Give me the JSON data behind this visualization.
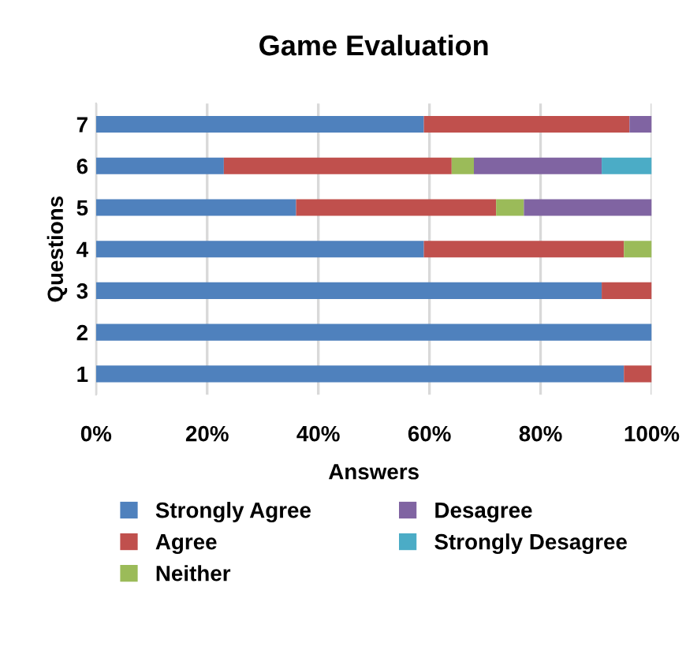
{
  "chart_data": {
    "type": "bar",
    "orientation": "horizontal",
    "stacked": true,
    "title": "Game Evaluation",
    "xlabel": "Answers",
    "ylabel": "Questions",
    "categories": [
      "7",
      "6",
      "5",
      "4",
      "3",
      "2",
      "1"
    ],
    "series": [
      {
        "name": "Strongly Agree",
        "color": "#4f81bd",
        "values": [
          59,
          23,
          36,
          59,
          91,
          100,
          95
        ]
      },
      {
        "name": "Agree",
        "color": "#c0504d",
        "values": [
          37,
          41,
          36,
          36,
          9,
          0,
          5
        ]
      },
      {
        "name": "Neither",
        "color": "#9bbb59",
        "values": [
          0,
          4,
          5,
          5,
          0,
          0,
          0
        ]
      },
      {
        "name": "Desagree",
        "color": "#8064a2",
        "values": [
          4,
          23,
          23,
          0,
          0,
          0,
          0
        ]
      },
      {
        "name": "Strongly Desagree",
        "color": "#4bacc6",
        "values": [
          0,
          9,
          0,
          0,
          0,
          0,
          0
        ]
      }
    ],
    "xlim": [
      0,
      100
    ],
    "xticks": [
      {
        "value": 0,
        "label": "0%"
      },
      {
        "value": 20,
        "label": "20%"
      },
      {
        "value": 40,
        "label": "40%"
      },
      {
        "value": 60,
        "label": "60%"
      },
      {
        "value": 80,
        "label": "80%"
      },
      {
        "value": 100,
        "label": "100%"
      }
    ],
    "grid": "x",
    "legend": "bottom"
  }
}
